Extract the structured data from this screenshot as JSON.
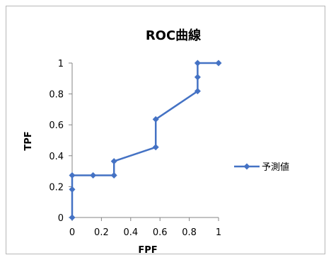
{
  "chart_data": {
    "type": "line",
    "title": "ROC曲線",
    "xlabel": "FPF",
    "ylabel": "TPF",
    "xlim": [
      0,
      1
    ],
    "ylim": [
      0,
      1
    ],
    "xticks": [
      0,
      0.2,
      0.4,
      0.6,
      0.8,
      1
    ],
    "xtick_labels": [
      "0",
      "0.2",
      "0.4",
      "0.6",
      "0.8",
      "1"
    ],
    "yticks": [
      0,
      0.2,
      0.4,
      0.6,
      0.8,
      1
    ],
    "ytick_labels": [
      "0",
      "0.2",
      "0.4",
      "0.6",
      "0.8",
      "1"
    ],
    "grid": false,
    "legend_position": "right",
    "series": [
      {
        "name": "予測値",
        "color": "#4472C4",
        "marker": "diamond",
        "x": [
          0,
          0,
          0,
          0.143,
          0.286,
          0.286,
          0.571,
          0.571,
          0.857,
          0.857,
          0.857,
          1
        ],
        "y": [
          0,
          0.182,
          0.273,
          0.273,
          0.273,
          0.364,
          0.455,
          0.636,
          0.818,
          0.909,
          1,
          1
        ]
      }
    ]
  }
}
